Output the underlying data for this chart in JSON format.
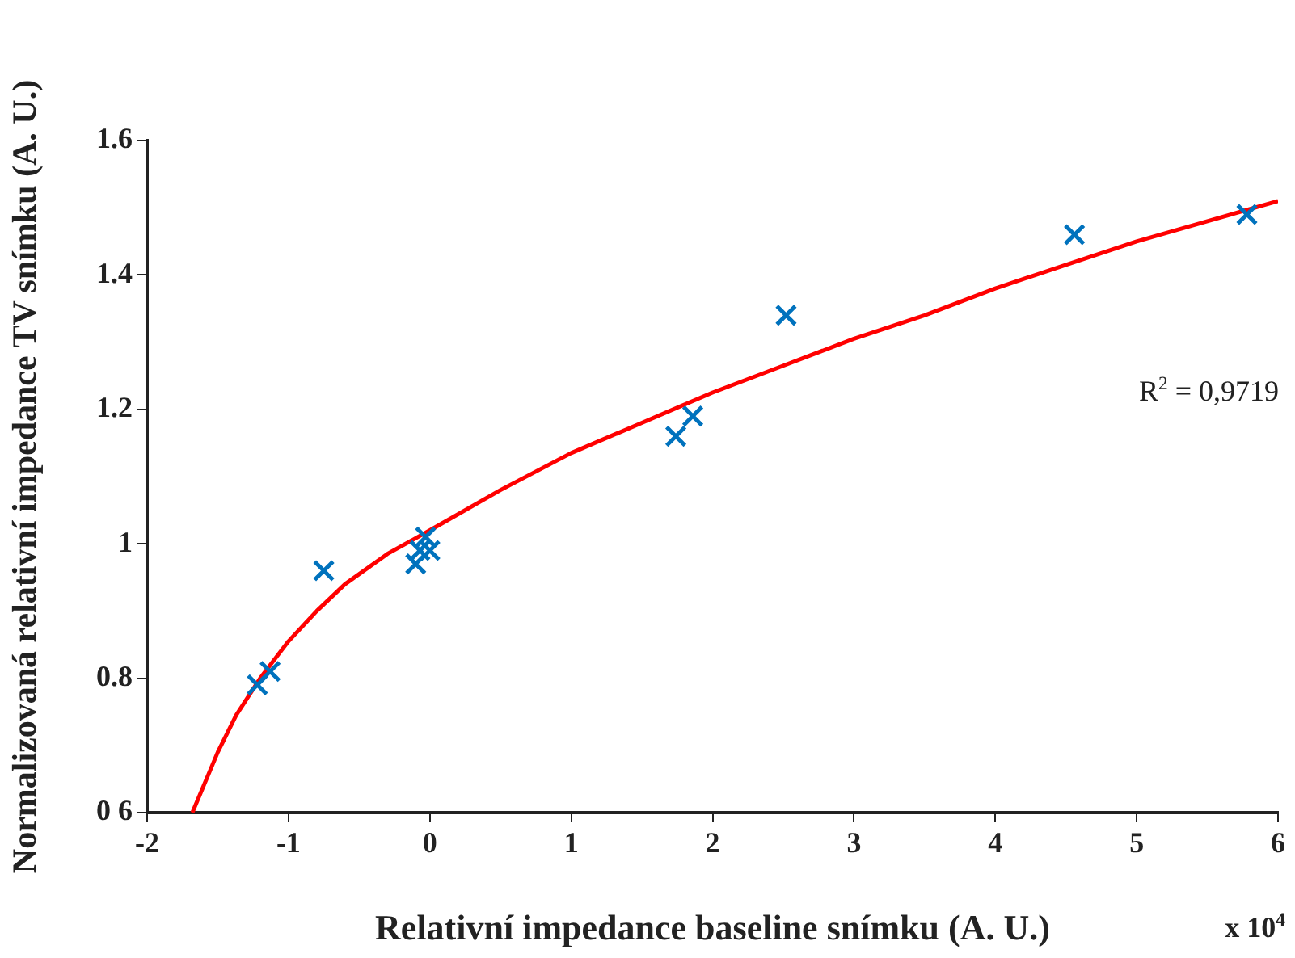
{
  "chart_data": {
    "type": "scatter",
    "xlabel": "Relativní impedance baseline snímku (A. U.)",
    "ylabel": "Normalizovaná relativní impedance TV snímku (A. U.)",
    "xlim": [
      -2,
      6
    ],
    "xticks": [
      -2,
      -1,
      0,
      1,
      2,
      3,
      4,
      5,
      6
    ],
    "ylim": [
      0.6,
      1.6
    ],
    "yticks": [
      {
        "value": 0.6,
        "label": "0 6"
      },
      0.8,
      1,
      1.2,
      1.4,
      1.6
    ],
    "grid": false,
    "legend": false,
    "marker": "cross",
    "annotations": [
      "x 10$^{4}$",
      "R$^{2}$ = 0,9719"
    ],
    "series": [
      {
        "color": "#0072bd",
        "x": [
          -1.22,
          -1.13,
          -0.75,
          -0.1,
          -0.07,
          -0.03,
          0.0,
          1.74,
          1.86,
          2.52,
          4.56,
          5.78
        ],
        "values": [
          0.79,
          0.81,
          0.96,
          0.97,
          0.99,
          1.01,
          0.99,
          1.16,
          1.19,
          1.34,
          1.46,
          1.49
        ]
      },
      {
        "type": "line",
        "color": "#ff0000",
        "marker": "none",
        "x": [
          -1.68,
          -1.6,
          -1.5,
          -1.37,
          -1.2,
          -1.0,
          -0.8,
          -0.6,
          -0.3,
          0.0,
          0.5,
          1.0,
          1.5,
          2.0,
          2.5,
          3.0,
          3.5,
          4.0,
          4.5,
          5.0,
          5.5,
          6.0
        ],
        "values": [
          0.6,
          0.64,
          0.69,
          0.745,
          0.8,
          0.855,
          0.9,
          0.94,
          0.985,
          1.02,
          1.08,
          1.135,
          1.18,
          1.225,
          1.265,
          1.305,
          1.34,
          1.38,
          1.415,
          1.45,
          1.48,
          1.51
        ]
      }
    ]
  }
}
